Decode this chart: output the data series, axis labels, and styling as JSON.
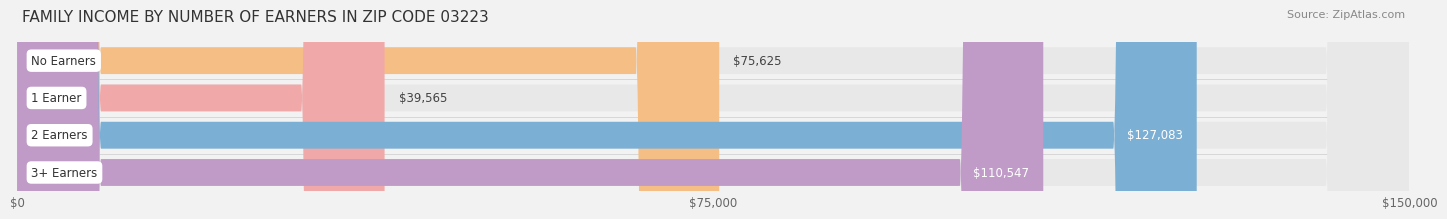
{
  "title": "FAMILY INCOME BY NUMBER OF EARNERS IN ZIP CODE 03223",
  "source": "Source: ZipAtlas.com",
  "categories": [
    "No Earners",
    "1 Earner",
    "2 Earners",
    "3+ Earners"
  ],
  "values": [
    75625,
    39565,
    127083,
    110547
  ],
  "bar_colors": [
    "#f5be85",
    "#f0a8a8",
    "#7bafd4",
    "#c09bc8"
  ],
  "label_colors": [
    "#444444",
    "#444444",
    "#ffffff",
    "#ffffff"
  ],
  "x_max": 150000,
  "x_ticks": [
    0,
    75000,
    150000
  ],
  "x_tick_labels": [
    "$0",
    "$75,000",
    "$150,000"
  ],
  "bg_color": "#f2f2f2",
  "row_bg_color": "#e8e8e8",
  "title_fontsize": 11,
  "source_fontsize": 8,
  "value_fontsize": 8.5,
  "tick_fontsize": 8.5,
  "cat_fontsize": 8.5
}
